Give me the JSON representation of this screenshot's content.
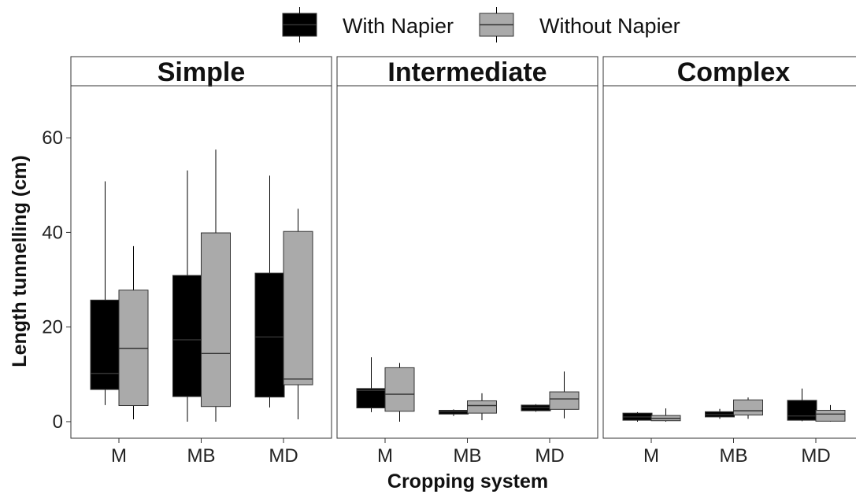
{
  "chart_data": {
    "type": "boxplot",
    "ylabel": "Length tunnelling (cm)",
    "xlabel": "Cropping system",
    "ylim": [
      -3.5,
      71
    ],
    "yticks": [
      0,
      20,
      40,
      60
    ],
    "categories": [
      "M",
      "MB",
      "MD"
    ],
    "legend_position": "top",
    "grid": false,
    "series": [
      {
        "name": "With Napier",
        "color": "#000000"
      },
      {
        "name": "Without Napier",
        "color": "#aaaaaa"
      }
    ],
    "facets": [
      {
        "title": "Simple",
        "groups": [
          {
            "category": "M",
            "boxes": [
              {
                "series": "With Napier",
                "min": 3.5,
                "q1": 6.8,
                "median": 10.2,
                "q3": 25.7,
                "max": 50.8
              },
              {
                "series": "Without Napier",
                "min": 0.5,
                "q1": 3.4,
                "median": 15.5,
                "q3": 27.8,
                "max": 37.1
              }
            ]
          },
          {
            "category": "MB",
            "boxes": [
              {
                "series": "With Napier",
                "min": 0,
                "q1": 5.3,
                "median": 17.3,
                "q3": 30.9,
                "max": 53.1
              },
              {
                "series": "Without Napier",
                "min": 0,
                "q1": 3.2,
                "median": 14.4,
                "q3": 39.9,
                "max": 57.5
              }
            ]
          },
          {
            "category": "MD",
            "boxes": [
              {
                "series": "With Napier",
                "min": 3.0,
                "q1": 5.2,
                "median": 17.9,
                "q3": 31.4,
                "max": 52.0
              },
              {
                "series": "Without Napier",
                "min": 0.5,
                "q1": 7.8,
                "median": 9.0,
                "q3": 40.2,
                "max": 45.0
              }
            ]
          }
        ]
      },
      {
        "title": "Intermediate",
        "groups": [
          {
            "category": "M",
            "boxes": [
              {
                "series": "With Napier",
                "min": 2.0,
                "q1": 2.9,
                "median": 6.6,
                "q3": 7.0,
                "max": 13.6
              },
              {
                "series": "Without Napier",
                "min": 0,
                "q1": 2.2,
                "median": 5.8,
                "q3": 11.4,
                "max": 12.4
              }
            ]
          },
          {
            "category": "MB",
            "boxes": [
              {
                "series": "With Napier",
                "min": 1.2,
                "q1": 1.6,
                "median": 2.1,
                "q3": 2.4,
                "max": 2.6
              },
              {
                "series": "Without Napier",
                "min": 0.3,
                "q1": 1.8,
                "median": 3.4,
                "q3": 4.4,
                "max": 6.0
              }
            ]
          },
          {
            "category": "MD",
            "boxes": [
              {
                "series": "With Napier",
                "min": 2.1,
                "q1": 2.3,
                "median": 3.0,
                "q3": 3.5,
                "max": 3.7
              },
              {
                "series": "Without Napier",
                "min": 0.7,
                "q1": 2.6,
                "median": 4.8,
                "q3": 6.3,
                "max": 10.6
              }
            ]
          }
        ]
      },
      {
        "title": "Complex",
        "groups": [
          {
            "category": "M",
            "boxes": [
              {
                "series": "With Napier",
                "min": 0,
                "q1": 0.3,
                "median": 1.0,
                "q3": 1.8,
                "max": 2.0
              },
              {
                "series": "Without Napier",
                "min": 0,
                "q1": 0.2,
                "median": 0.7,
                "q3": 1.3,
                "max": 2.8
              }
            ]
          },
          {
            "category": "MB",
            "boxes": [
              {
                "series": "With Napier",
                "min": 0.6,
                "q1": 1.0,
                "median": 1.5,
                "q3": 2.1,
                "max": 2.7
              },
              {
                "series": "Without Napier",
                "min": 0.6,
                "q1": 1.4,
                "median": 2.3,
                "q3": 4.6,
                "max": 5.1
              }
            ]
          },
          {
            "category": "MD",
            "boxes": [
              {
                "series": "With Napier",
                "min": 0.1,
                "q1": 0.3,
                "median": 1.2,
                "q3": 4.5,
                "max": 7.0
              },
              {
                "series": "Without Napier",
                "min": 0,
                "q1": 0.1,
                "median": 1.6,
                "q3": 2.4,
                "max": 3.5
              }
            ]
          }
        ]
      }
    ]
  }
}
